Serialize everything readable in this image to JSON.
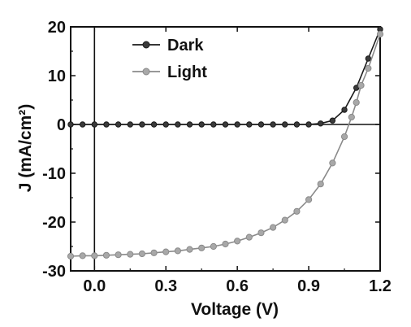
{
  "chart_data": {
    "type": "line",
    "xlabel": "Voltage (V)",
    "ylabel": "J (mA/cm²)",
    "xlim": [
      -0.1,
      1.2
    ],
    "ylim": [
      -30,
      20
    ],
    "x_ticks": [
      "0.0",
      "0.3",
      "0.6",
      "0.9",
      "1.2"
    ],
    "y_ticks": [
      "-30",
      "-20",
      "-10",
      "0",
      "10",
      "20"
    ],
    "legend_position": "top-center",
    "grid": false,
    "colors": {
      "dark": "#1a1a1a",
      "light": "#8a8a8a",
      "axis": "#111111"
    },
    "series": [
      {
        "name": "Dark",
        "x": [
          -0.1,
          -0.05,
          0.0,
          0.05,
          0.1,
          0.15,
          0.2,
          0.25,
          0.3,
          0.35,
          0.4,
          0.45,
          0.5,
          0.55,
          0.6,
          0.65,
          0.7,
          0.75,
          0.8,
          0.85,
          0.9,
          0.95,
          1.0,
          1.05,
          1.1,
          1.15,
          1.2
        ],
        "values": [
          0,
          0,
          0,
          0,
          0,
          0,
          0,
          0,
          0,
          0,
          0,
          0,
          0,
          0,
          0,
          0,
          0,
          0,
          0,
          0,
          0,
          0.2,
          0.8,
          3.0,
          7.5,
          13.5,
          19.5
        ]
      },
      {
        "name": "Light",
        "x": [
          -0.1,
          -0.05,
          0.0,
          0.05,
          0.1,
          0.15,
          0.2,
          0.25,
          0.3,
          0.35,
          0.4,
          0.45,
          0.5,
          0.55,
          0.6,
          0.65,
          0.7,
          0.75,
          0.8,
          0.85,
          0.9,
          0.95,
          1.0,
          1.05,
          1.08,
          1.1,
          1.12,
          1.15,
          1.2
        ],
        "values": [
          -27.0,
          -26.9,
          -26.9,
          -26.8,
          -26.7,
          -26.6,
          -26.5,
          -26.3,
          -26.1,
          -25.9,
          -25.6,
          -25.3,
          -25.0,
          -24.5,
          -23.9,
          -23.1,
          -22.2,
          -21.1,
          -19.6,
          -17.8,
          -15.4,
          -12.2,
          -7.9,
          -2.5,
          1.5,
          4.5,
          8.0,
          11.5,
          18.5
        ]
      }
    ]
  }
}
